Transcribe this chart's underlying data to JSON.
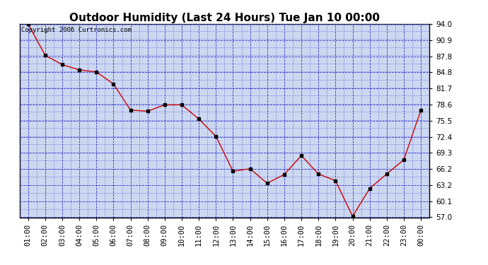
{
  "title": "Outdoor Humidity (Last 24 Hours) Tue Jan 10 00:00",
  "copyright_text": "Copyright 2006 Curtronics.com",
  "x_labels": [
    "01:00",
    "02:00",
    "03:00",
    "04:00",
    "05:00",
    "06:00",
    "07:00",
    "08:00",
    "09:00",
    "10:00",
    "11:00",
    "12:00",
    "13:00",
    "14:00",
    "15:00",
    "16:00",
    "17:00",
    "18:00",
    "19:00",
    "20:00",
    "21:00",
    "22:00",
    "23:00",
    "00:00"
  ],
  "y_values": [
    94.0,
    88.0,
    86.2,
    85.2,
    84.8,
    82.5,
    77.5,
    77.3,
    78.5,
    78.5,
    75.8,
    72.5,
    65.8,
    66.3,
    63.5,
    65.2,
    68.8,
    65.3,
    64.0,
    57.2,
    62.5,
    65.3,
    68.0,
    77.5
  ],
  "ylim_min": 57.0,
  "ylim_max": 94.0,
  "y_ticks": [
    57.0,
    60.1,
    63.2,
    66.2,
    69.3,
    72.4,
    75.5,
    78.6,
    81.7,
    84.8,
    87.8,
    90.9,
    94.0
  ],
  "line_color": "#cc0000",
  "marker_color": "#000000",
  "grid_color": "#3333cc",
  "background_color": "#ffffff",
  "plot_bg_color": "#ccd8f0",
  "title_fontsize": 11,
  "tick_fontsize": 7.5,
  "copyright_fontsize": 6.5
}
